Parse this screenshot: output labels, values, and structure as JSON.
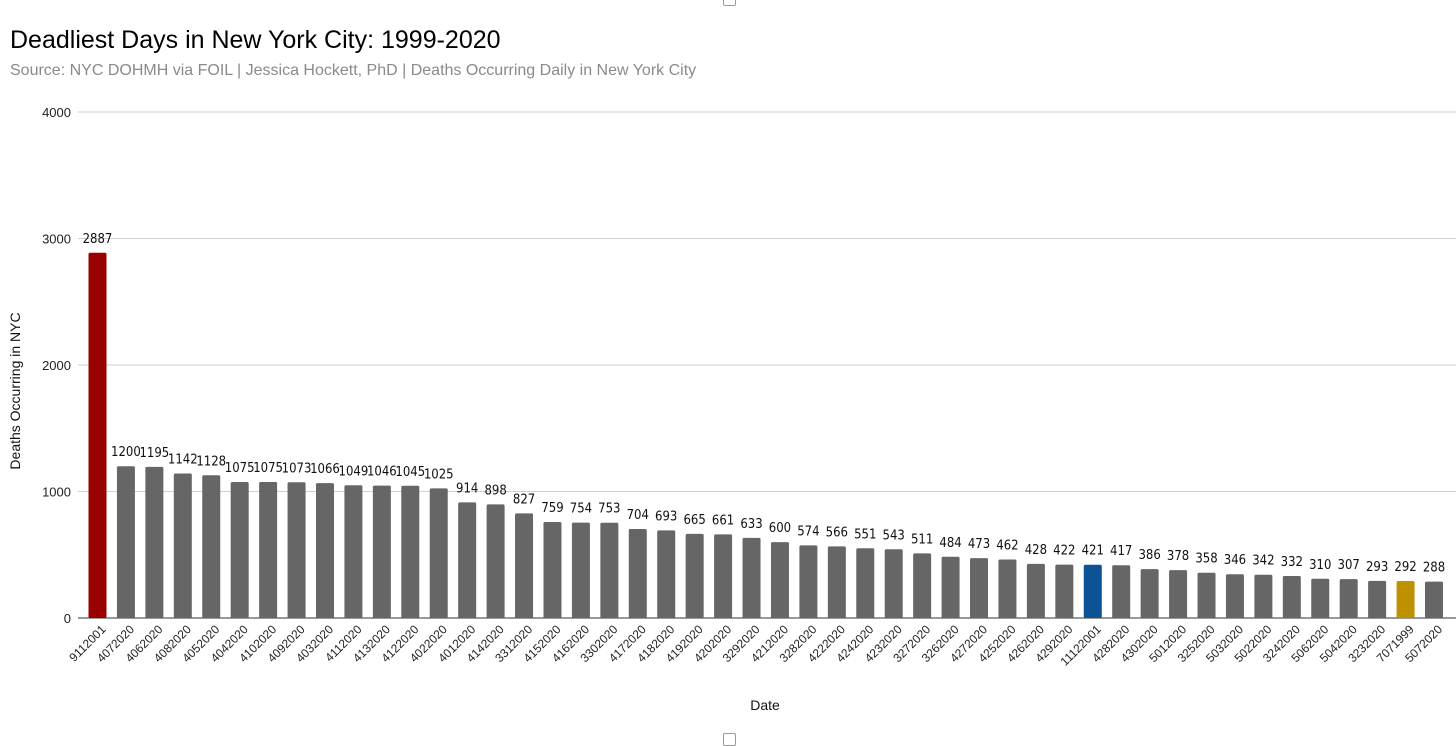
{
  "chart_data": {
    "type": "bar",
    "title": "Deadliest Days in New York City: 1999-2020",
    "subtitle": "Source: NYC DOHMH via FOIL | Jessica Hockett, PhD | Deaths Occurring Daily in New York City",
    "xlabel": "Date",
    "ylabel": "Deaths Occurring in NYC",
    "ylim": [
      0,
      4000
    ],
    "yticks": [
      0,
      1000,
      2000,
      3000,
      4000
    ],
    "grid": true,
    "default_color": "#666666",
    "categories": [
      "9112001",
      "4072020",
      "4062020",
      "4082020",
      "4052020",
      "4042020",
      "4102020",
      "4092020",
      "4032020",
      "4112020",
      "4132020",
      "4122020",
      "4022020",
      "4012020",
      "4142020",
      "3312020",
      "4152020",
      "4162020",
      "3302020",
      "4172020",
      "4182020",
      "4192020",
      "4202020",
      "3292020",
      "4212020",
      "3282020",
      "4222020",
      "4242020",
      "4232020",
      "3272020",
      "3262020",
      "4272020",
      "4252020",
      "4262020",
      "4292020",
      "11122001",
      "4282020",
      "4302020",
      "5012020",
      "3252020",
      "5032020",
      "5022020",
      "3242020",
      "5062020",
      "5042020",
      "3232020",
      "7071999",
      "5072020"
    ],
    "values": [
      2887,
      1200,
      1195,
      1142,
      1128,
      1075,
      1075,
      1073,
      1066,
      1049,
      1046,
      1045,
      1025,
      914,
      898,
      827,
      759,
      754,
      753,
      704,
      693,
      665,
      661,
      633,
      600,
      574,
      566,
      551,
      543,
      511,
      484,
      473,
      462,
      428,
      422,
      421,
      417,
      386,
      378,
      358,
      346,
      342,
      332,
      310,
      307,
      293,
      292,
      288
    ],
    "highlights": [
      {
        "category": "9112001",
        "color": "#9b0000"
      },
      {
        "category": "11122001",
        "color": "#0b5394"
      },
      {
        "category": "7071999",
        "color": "#bf9000"
      }
    ]
  }
}
